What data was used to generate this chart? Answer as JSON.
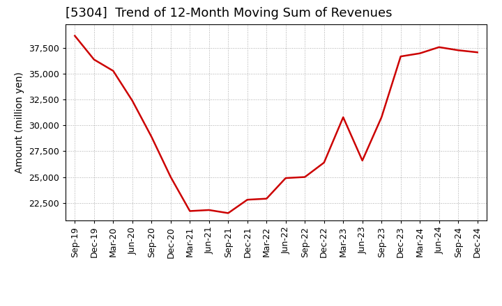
{
  "title": "[5304]  Trend of 12-Month Moving Sum of Revenues",
  "ylabel": "Amount (million yen)",
  "background_color": "#ffffff",
  "plot_background_color": "#ffffff",
  "grid_color": "#aaaaaa",
  "line_color": "#cc0000",
  "line_width": 1.8,
  "x_labels": [
    "Sep-19",
    "Dec-19",
    "Mar-20",
    "Jun-20",
    "Sep-20",
    "Dec-20",
    "Mar-21",
    "Jun-21",
    "Sep-21",
    "Dec-21",
    "Mar-22",
    "Jun-22",
    "Sep-22",
    "Dec-22",
    "Mar-23",
    "Jun-23",
    "Sep-23",
    "Dec-23",
    "Mar-24",
    "Jun-24",
    "Sep-24",
    "Dec-24"
  ],
  "y_values": [
    38700,
    36400,
    35300,
    32400,
    28900,
    25000,
    21700,
    21800,
    21500,
    22800,
    22900,
    24900,
    25000,
    26400,
    30800,
    26600,
    30800,
    36700,
    37000,
    37600,
    37300,
    37100
  ],
  "ylim_min": 20800,
  "ylim_max": 39800,
  "yticks": [
    22500,
    25000,
    27500,
    30000,
    32500,
    35000,
    37500
  ],
  "title_fontsize": 13,
  "tick_fontsize": 9,
  "ylabel_fontsize": 10,
  "title_fontweight": "normal"
}
